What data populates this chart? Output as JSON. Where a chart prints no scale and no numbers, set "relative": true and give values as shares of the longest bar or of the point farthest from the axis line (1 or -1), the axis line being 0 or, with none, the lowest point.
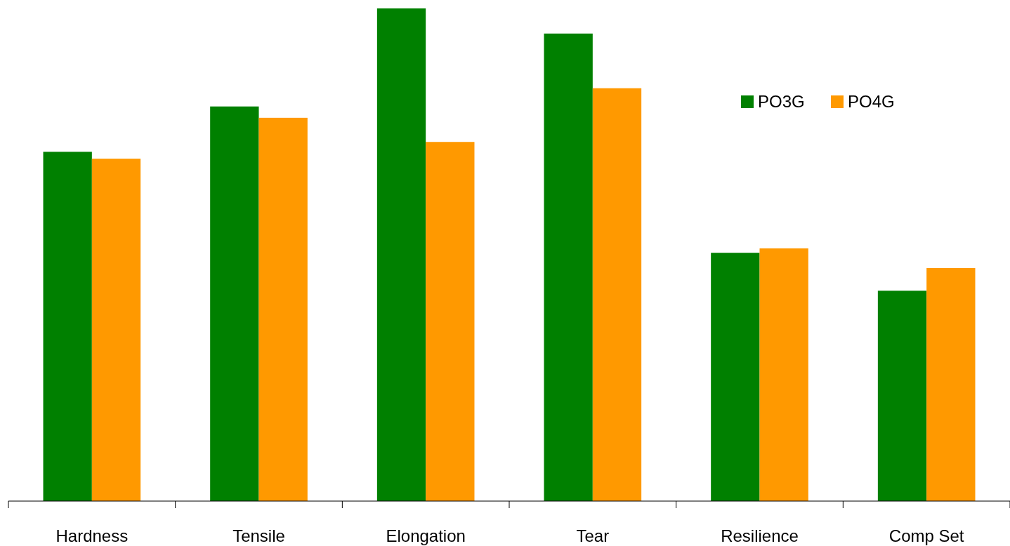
{
  "chart_data": {
    "type": "bar",
    "relative": true,
    "categories": [
      "Hardness",
      "Tensile",
      "Elongation",
      "Tear",
      "Resilience",
      "Comp Set"
    ],
    "series": [
      {
        "name": "PO3G",
        "color": "#008000",
        "values": [
          0.709,
          0.801,
          1,
          0.949,
          0.504,
          0.427
        ]
      },
      {
        "name": "PO4G",
        "color": "#ff9900",
        "values": [
          0.695,
          0.778,
          0.729,
          0.838,
          0.513,
          0.473
        ]
      }
    ],
    "legend": "top right"
  }
}
